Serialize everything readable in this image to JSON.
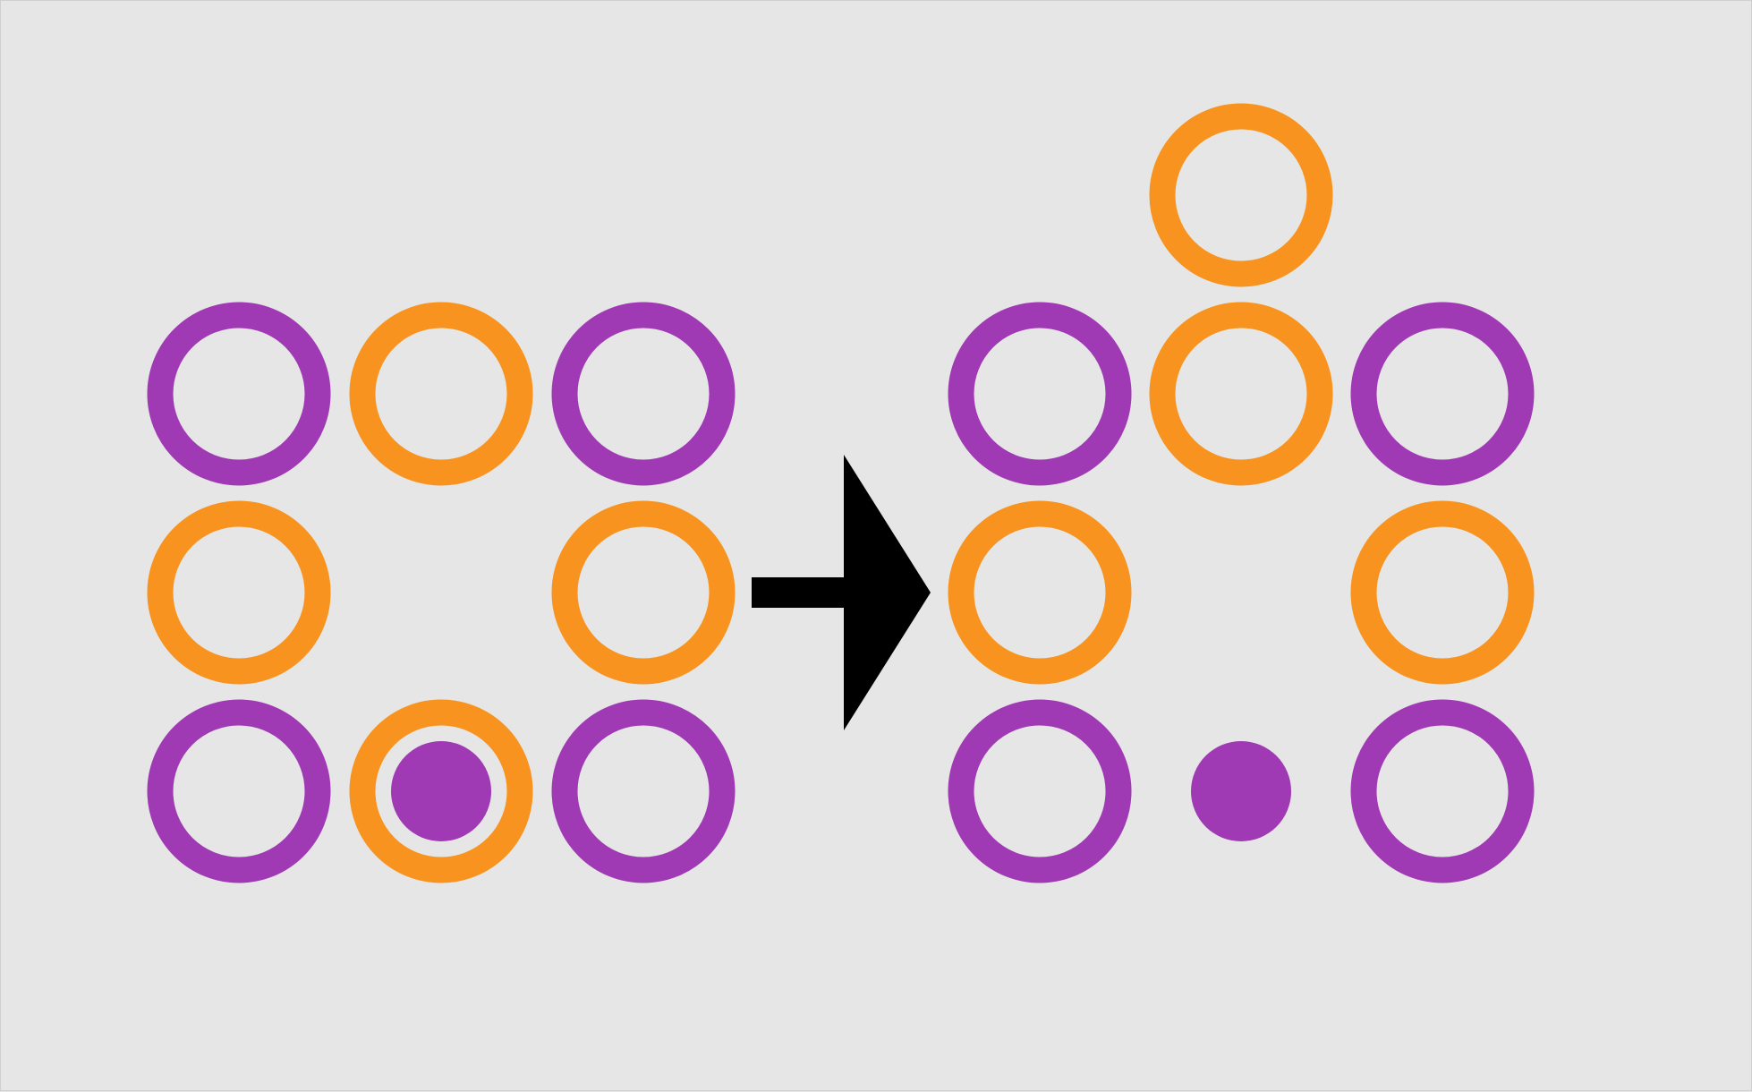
{
  "colors": {
    "background": "#e6e6e6",
    "purple": "#a03ab4",
    "orange": "#f7931e",
    "arrow": "#000000"
  },
  "diagram": {
    "before": {
      "rings": [
        {
          "row": 0,
          "col": 0,
          "color": "purple"
        },
        {
          "row": 0,
          "col": 1,
          "color": "orange"
        },
        {
          "row": 0,
          "col": 2,
          "color": "purple"
        },
        {
          "row": 1,
          "col": 0,
          "color": "orange"
        },
        {
          "row": 1,
          "col": 2,
          "color": "orange"
        },
        {
          "row": 2,
          "col": 0,
          "color": "purple"
        },
        {
          "row": 2,
          "col": 1,
          "color": "orange"
        },
        {
          "row": 2,
          "col": 2,
          "color": "purple"
        }
      ],
      "dot": {
        "row": 2,
        "col": 1,
        "color": "purple"
      }
    },
    "arrow": {
      "direction": "right",
      "icon": "right-arrow-icon"
    },
    "after": {
      "rings": [
        {
          "row": -1,
          "col": 1,
          "color": "orange"
        },
        {
          "row": 0,
          "col": 0,
          "color": "purple"
        },
        {
          "row": 0,
          "col": 1,
          "color": "orange"
        },
        {
          "row": 0,
          "col": 2,
          "color": "purple"
        },
        {
          "row": 1,
          "col": 0,
          "color": "orange"
        },
        {
          "row": 1,
          "col": 2,
          "color": "orange"
        },
        {
          "row": 2,
          "col": 0,
          "color": "purple"
        },
        {
          "row": 2,
          "col": 2,
          "color": "purple"
        }
      ],
      "dot": {
        "row": 2,
        "col": 1,
        "color": "purple"
      }
    }
  }
}
